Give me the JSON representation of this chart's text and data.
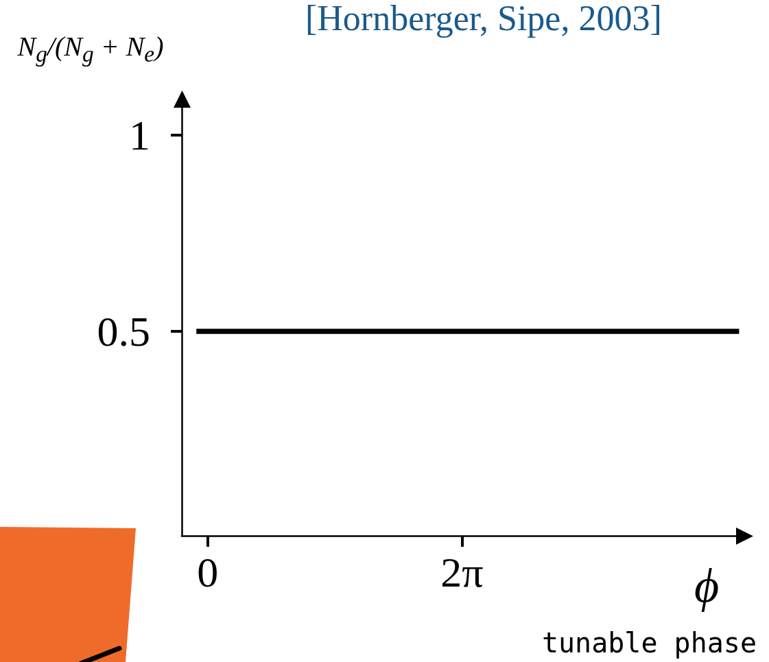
{
  "chart_data": {
    "type": "line",
    "title": "[Hornberger, Sipe, 2003]",
    "xlabel": "ϕ",
    "ylabel": "N$_{g}$/(N$_{g}$ + N$_{e}$)",
    "annotations": [
      "tunable phase"
    ],
    "x": [
      -0.28,
      13.13
    ],
    "series": [
      {
        "color": "#000000",
        "values": [
          0.5,
          0.5
        ]
      }
    ],
    "xlim": [
      -0.64,
      13.25
    ],
    "xticks": [
      0,
      {
        "value": 6.283,
        "label": "2π"
      }
    ],
    "ylim": [
      -0.02,
      1.09
    ],
    "yticks": [
      0.5,
      1
    ],
    "marker": "none",
    "line_style": "solid"
  }
}
